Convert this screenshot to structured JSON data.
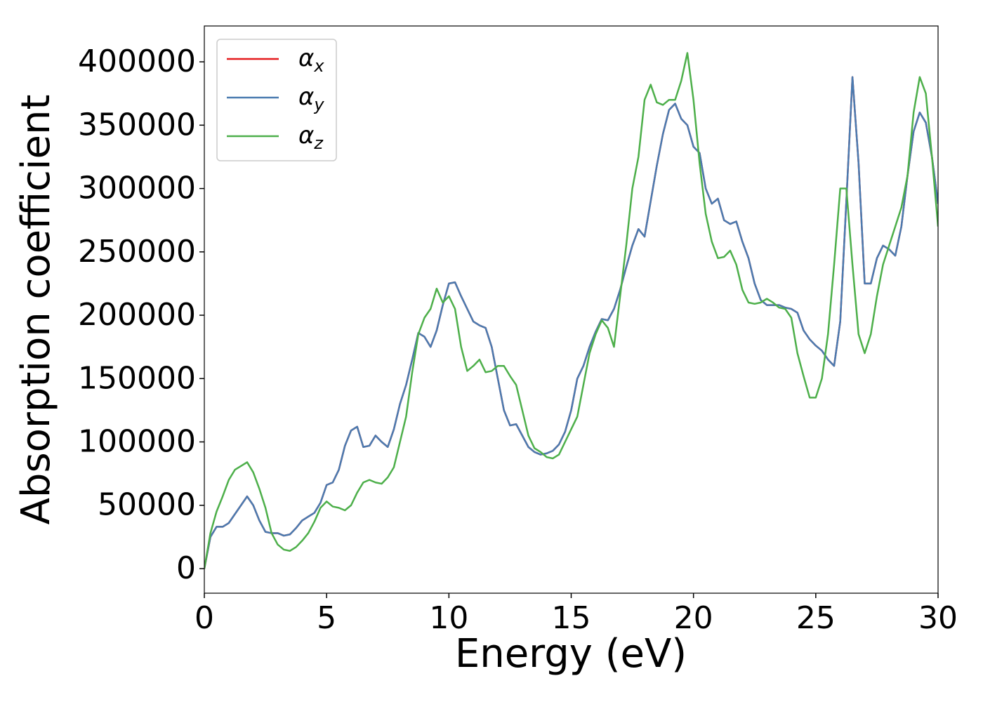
{
  "chart_data": {
    "type": "line",
    "xlabel": "Energy (eV)",
    "ylabel": "Absorption coefficient",
    "x": [
      0,
      0.25,
      0.5,
      0.75,
      1,
      1.25,
      1.5,
      1.75,
      2,
      2.25,
      2.5,
      2.75,
      3,
      3.25,
      3.5,
      3.75,
      4,
      4.25,
      4.5,
      4.75,
      5,
      5.25,
      5.5,
      5.75,
      6,
      6.25,
      6.5,
      6.75,
      7,
      7.25,
      7.5,
      7.75,
      8,
      8.25,
      8.5,
      8.75,
      9,
      9.25,
      9.5,
      9.75,
      10,
      10.25,
      10.5,
      10.75,
      11,
      11.25,
      11.5,
      11.75,
      12,
      12.25,
      12.5,
      12.75,
      13,
      13.25,
      13.5,
      13.75,
      14,
      14.25,
      14.5,
      14.75,
      15,
      15.25,
      15.5,
      15.75,
      16,
      16.25,
      16.5,
      16.75,
      17,
      17.25,
      17.5,
      17.75,
      18,
      18.25,
      18.5,
      18.75,
      19,
      19.25,
      19.5,
      19.75,
      20,
      20.25,
      20.5,
      20.75,
      21,
      21.25,
      21.5,
      21.75,
      22,
      22.25,
      22.5,
      22.75,
      23,
      23.25,
      23.5,
      23.75,
      24,
      24.25,
      24.5,
      24.75,
      25,
      25.25,
      25.5,
      25.75,
      26,
      26.25,
      26.5,
      26.75,
      27,
      27.25,
      27.5,
      27.75,
      28,
      28.25,
      28.5,
      28.75,
      29,
      29.25,
      29.5,
      29.75,
      30
    ],
    "series": [
      {
        "name": "αx",
        "color": "#e41a1c",
        "values": [
          0,
          25000,
          33000,
          33000,
          36000,
          43000,
          50000,
          57000,
          50000,
          38000,
          29000,
          28000,
          28000,
          26000,
          27000,
          32000,
          38000,
          41000,
          44000,
          52000,
          66000,
          68000,
          78000,
          97000,
          109000,
          112000,
          96000,
          97000,
          105000,
          100000,
          96000,
          110000,
          130000,
          145000,
          165000,
          186000,
          183000,
          175000,
          188000,
          208000,
          225000,
          226000,
          215000,
          205000,
          195000,
          192000,
          190000,
          175000,
          150000,
          125000,
          113000,
          114000,
          105000,
          96000,
          92000,
          90000,
          91000,
          93000,
          98000,
          108000,
          125000,
          150000,
          160000,
          175000,
          187000,
          197000,
          196000,
          205000,
          220000,
          238000,
          255000,
          268000,
          262000,
          290000,
          318000,
          343000,
          362000,
          367000,
          355000,
          350000,
          333000,
          328000,
          300000,
          288000,
          292000,
          275000,
          272000,
          274000,
          258000,
          245000,
          225000,
          212000,
          208000,
          208000,
          208000,
          206000,
          205000,
          202000,
          188000,
          181000,
          176000,
          172000,
          165000,
          160000,
          195000,
          290000,
          388000,
          320000,
          225000,
          225000,
          245000,
          255000,
          252000,
          247000,
          270000,
          310000,
          345000,
          360000,
          352000,
          325000,
          288000
        ]
      },
      {
        "name": "αy",
        "color": "#4a7bb0",
        "values": [
          0,
          25000,
          33000,
          33000,
          36000,
          43000,
          50000,
          57000,
          50000,
          38000,
          29000,
          28000,
          28000,
          26000,
          27000,
          32000,
          38000,
          41000,
          44000,
          52000,
          66000,
          68000,
          78000,
          97000,
          109000,
          112000,
          96000,
          97000,
          105000,
          100000,
          96000,
          110000,
          130000,
          145000,
          165000,
          186000,
          183000,
          175000,
          188000,
          208000,
          225000,
          226000,
          215000,
          205000,
          195000,
          192000,
          190000,
          175000,
          150000,
          125000,
          113000,
          114000,
          105000,
          96000,
          92000,
          90000,
          91000,
          93000,
          98000,
          108000,
          125000,
          150000,
          160000,
          175000,
          187000,
          197000,
          196000,
          205000,
          220000,
          238000,
          255000,
          268000,
          262000,
          290000,
          318000,
          343000,
          362000,
          367000,
          355000,
          350000,
          333000,
          328000,
          300000,
          288000,
          292000,
          275000,
          272000,
          274000,
          258000,
          245000,
          225000,
          212000,
          208000,
          208000,
          208000,
          206000,
          205000,
          202000,
          188000,
          181000,
          176000,
          172000,
          165000,
          160000,
          195000,
          290000,
          388000,
          320000,
          225000,
          225000,
          245000,
          255000,
          252000,
          247000,
          270000,
          310000,
          345000,
          360000,
          352000,
          325000,
          288000
        ]
      },
      {
        "name": "αz",
        "color": "#4daf4a",
        "values": [
          0,
          28000,
          45000,
          57000,
          70000,
          78000,
          81000,
          84000,
          76000,
          63000,
          48000,
          28000,
          19000,
          15000,
          14000,
          17000,
          22000,
          28000,
          37000,
          48000,
          53000,
          49000,
          48000,
          46000,
          50000,
          60000,
          68000,
          70000,
          68000,
          67000,
          72000,
          80000,
          100000,
          120000,
          155000,
          185000,
          198000,
          205000,
          221000,
          210000,
          215000,
          205000,
          175000,
          156000,
          160000,
          165000,
          155000,
          156000,
          160000,
          160000,
          152000,
          145000,
          125000,
          105000,
          95000,
          92000,
          88000,
          87000,
          90000,
          100000,
          110000,
          120000,
          145000,
          170000,
          185000,
          196000,
          190000,
          175000,
          215000,
          255000,
          300000,
          325000,
          370000,
          382000,
          368000,
          366000,
          370000,
          370000,
          385000,
          407000,
          370000,
          320000,
          280000,
          258000,
          245000,
          246000,
          251000,
          240000,
          220000,
          210000,
          209000,
          210000,
          213000,
          210000,
          206000,
          205000,
          198000,
          170000,
          152000,
          135000,
          135000,
          150000,
          185000,
          240000,
          300000,
          300000,
          240000,
          185000,
          170000,
          185000,
          215000,
          240000,
          255000,
          270000,
          285000,
          310000,
          360000,
          388000,
          375000,
          325000,
          270000
        ]
      }
    ],
    "xlim": [
      0,
      30
    ],
    "xticks": [
      0,
      5,
      10,
      15,
      20,
      25,
      30
    ],
    "ylim": [
      -19400,
      428300
    ],
    "yticks": [
      0,
      50000,
      100000,
      150000,
      200000,
      250000,
      300000,
      350000,
      400000
    ],
    "legend": "upper left",
    "grid": false
  }
}
